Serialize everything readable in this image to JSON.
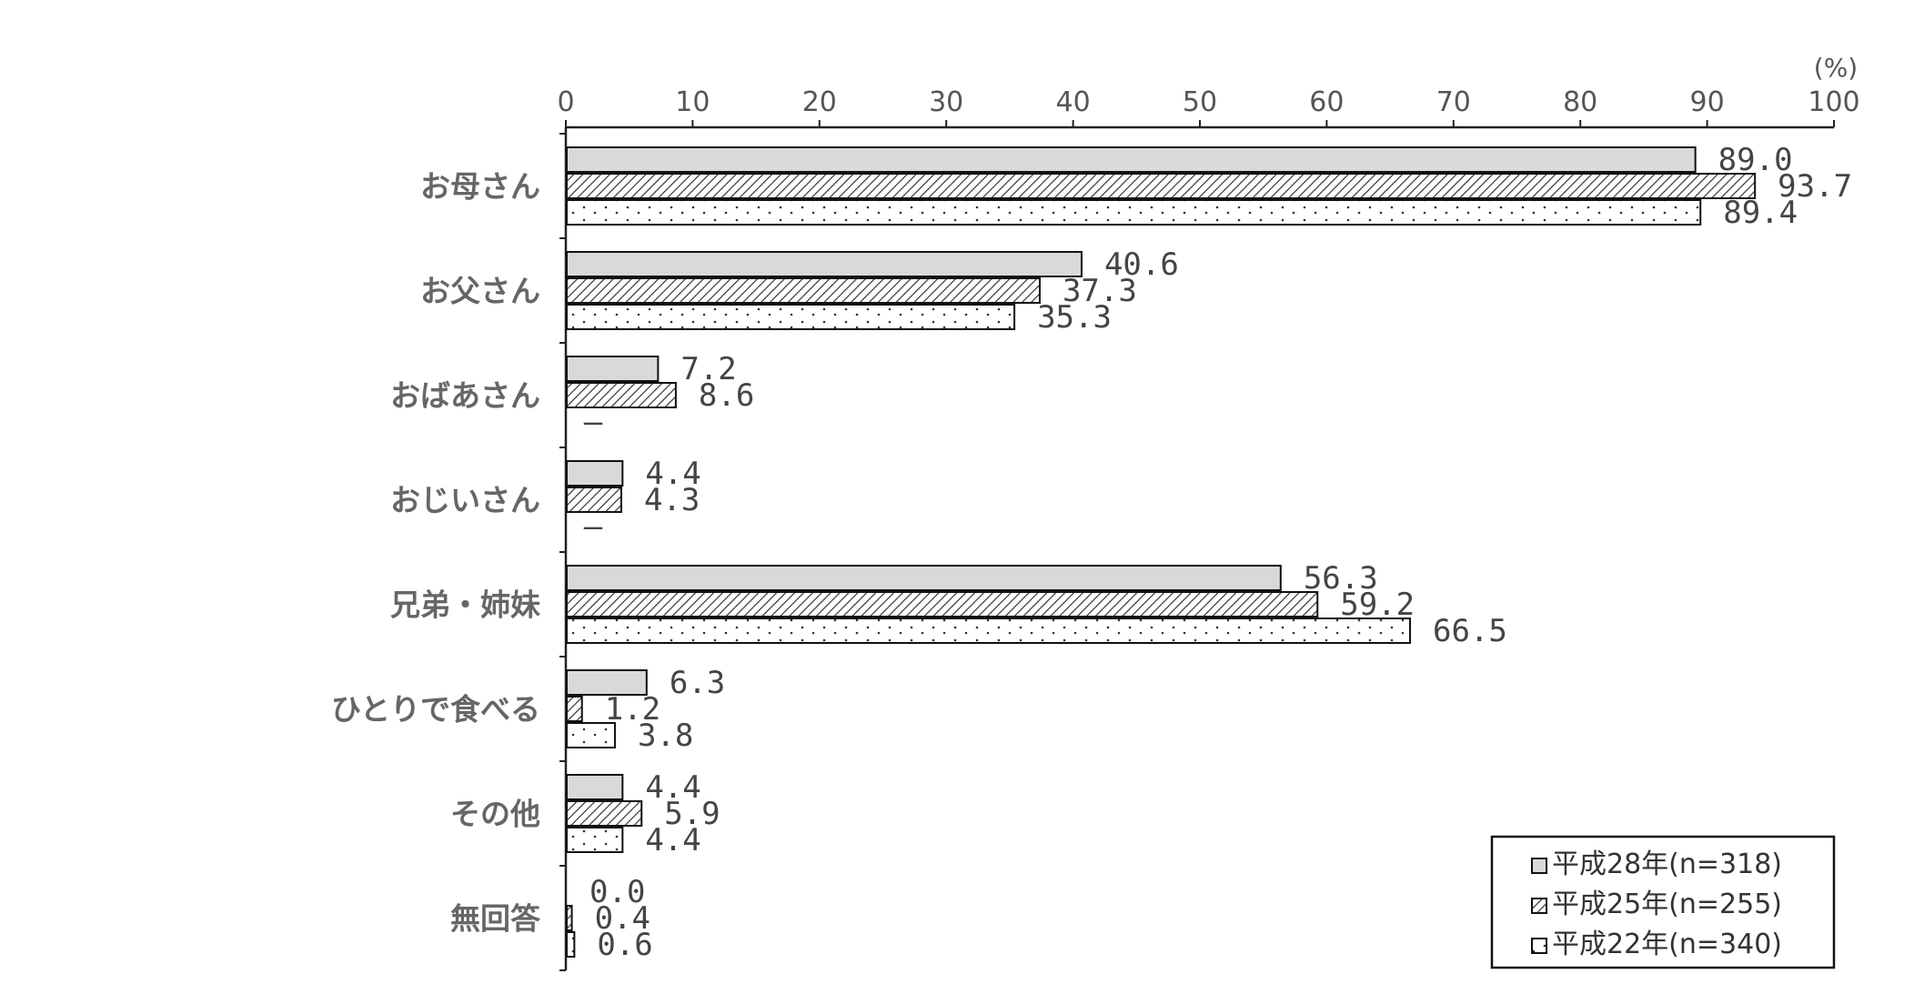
{
  "chart_data": {
    "type": "bar",
    "orientation": "horizontal",
    "xlim": [
      0,
      100
    ],
    "xticks": [
      0,
      10,
      20,
      30,
      40,
      50,
      60,
      70,
      80,
      90,
      100
    ],
    "unit": "(%)",
    "categories": [
      "お母さん",
      "お父さん",
      "おばあさん",
      "おじいさん",
      "兄弟・姉妹",
      "ひとりで食べる",
      "その他",
      "無回答"
    ],
    "series": [
      {
        "name": "平成28年(n=318)",
        "pattern": "solid-gray",
        "color": "#d9d9d9",
        "values": [
          89.0,
          40.6,
          7.2,
          4.4,
          56.3,
          6.3,
          4.4,
          0.0
        ],
        "labels": [
          "89.0",
          "40.6",
          "7.2",
          "4.4",
          "56.3",
          "6.3",
          "4.4",
          "0.0"
        ]
      },
      {
        "name": "平成25年(n=255)",
        "pattern": "diagonal-hatch",
        "color": "#ffffff",
        "values": [
          93.7,
          37.3,
          8.6,
          4.3,
          59.2,
          1.2,
          5.9,
          0.4
        ],
        "labels": [
          "93.7",
          "37.3",
          "8.6",
          "4.3",
          "59.2",
          "1.2",
          "5.9",
          "0.4"
        ]
      },
      {
        "name": "平成22年(n=340)",
        "pattern": "dots",
        "color": "#ffffff",
        "values": [
          89.4,
          35.3,
          null,
          null,
          66.5,
          3.8,
          4.4,
          0.6
        ],
        "labels": [
          "89.4",
          "35.3",
          "–",
          "–",
          "66.5",
          "3.8",
          "4.4",
          "0.6"
        ]
      }
    ],
    "legend_position": "bottom-right",
    "grid": false
  }
}
